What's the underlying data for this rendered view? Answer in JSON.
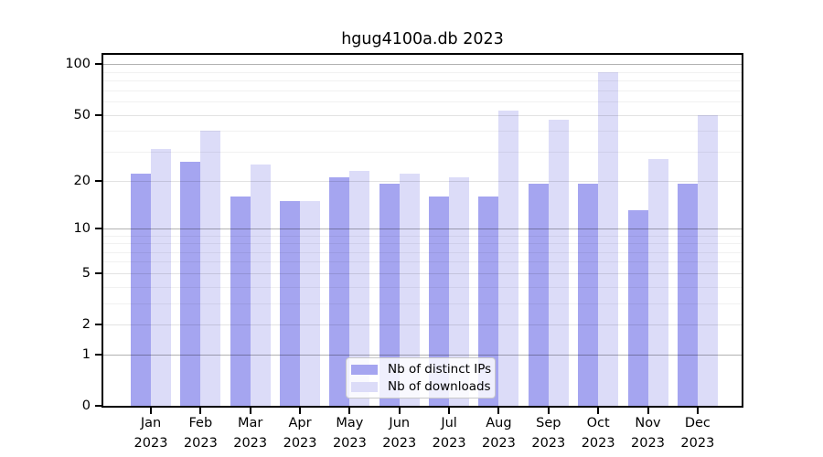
{
  "title": "hgug4100a.db 2023",
  "chart_data": {
    "type": "bar",
    "title": "hgug4100a.db 2023",
    "xlabel": "",
    "ylabel": "",
    "categories": [
      "Jan",
      "Feb",
      "Mar",
      "Apr",
      "May",
      "Jun",
      "Jul",
      "Aug",
      "Sep",
      "Oct",
      "Nov",
      "Dec"
    ],
    "category_year": "2023",
    "series": [
      {
        "name": "Nb of distinct IPs",
        "color": "#a5a5f0",
        "values": [
          22,
          26,
          16,
          15,
          21,
          19,
          16,
          16,
          19,
          19,
          13,
          19
        ]
      },
      {
        "name": "Nb of downloads",
        "color": "#dcdcf8",
        "values": [
          31,
          40,
          25,
          15,
          23,
          22,
          21,
          53,
          47,
          90,
          27,
          50
        ]
      }
    ],
    "y_axis": {
      "scale": "log10(1+x)",
      "range": [
        0,
        100
      ],
      "ticks": [
        0,
        1,
        2,
        5,
        10,
        20,
        50,
        100
      ],
      "power_gridlines": [
        1,
        10,
        100
      ],
      "mid_gridlines": [
        2,
        5,
        20,
        50
      ],
      "minor_gridlines": [
        3,
        4,
        6,
        7,
        8,
        9,
        30,
        40,
        60,
        70,
        80,
        90
      ]
    },
    "legend": {
      "position": "bottom-center",
      "entries": [
        "Nb of distinct IPs",
        "Nb of downloads"
      ]
    },
    "grid": "on"
  }
}
